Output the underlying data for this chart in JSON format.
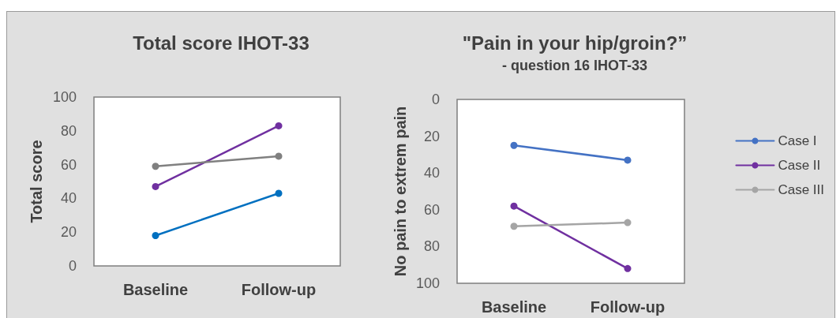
{
  "chart_data": [
    {
      "type": "line",
      "title": "Total score IHOT-33",
      "ylabel": "Total score",
      "categories": [
        "Baseline",
        "Follow-up"
      ],
      "ylim": [
        0,
        100
      ],
      "yticks": [
        0,
        20,
        40,
        60,
        80,
        100
      ],
      "grid": false,
      "legend": false,
      "marker": "circle",
      "series": [
        {
          "color": "#0070c0",
          "values": [
            18,
            43
          ]
        },
        {
          "color": "#7030a0",
          "values": [
            47,
            83
          ]
        },
        {
          "color": "#808080",
          "values": [
            59,
            65
          ]
        }
      ]
    },
    {
      "type": "line",
      "title": "\"Pain in your hip/groin?”",
      "subtitle": "- question 16 IHOT-33",
      "ylabel": "No pain to extrem pain",
      "categories": [
        "Baseline",
        "Follow-up"
      ],
      "ylim": [
        100,
        0
      ],
      "yticks": [
        0,
        20,
        40,
        60,
        80,
        100
      ],
      "grid": false,
      "legend": "right",
      "marker": "circle",
      "series": [
        {
          "name": "Case I",
          "color": "#4472c4",
          "values": [
            25,
            33
          ]
        },
        {
          "name": "Case II",
          "color": "#7030a0",
          "values": [
            58,
            92
          ]
        },
        {
          "name": "Case III",
          "color": "#a5a5a5",
          "values": [
            69,
            67
          ]
        }
      ]
    }
  ]
}
